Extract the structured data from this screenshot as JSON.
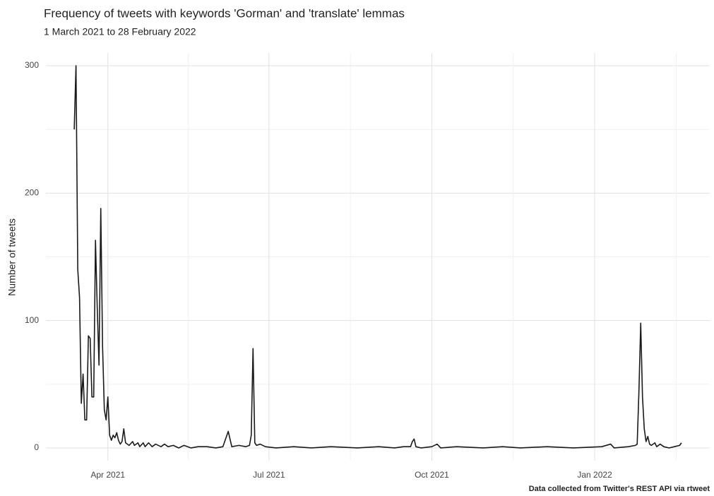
{
  "chart_data": {
    "type": "line",
    "title": "Frequency of tweets with keywords 'Gorman' and 'translate' lemmas",
    "subtitle": "1 March 2021 to 28 February 2022",
    "y_label": "Number of tweets",
    "caption": "Data collected from Twitter's REST API via rtweet",
    "x": [
      "2021-03-13",
      "2021-03-14",
      "2021-03-15",
      "2021-03-16",
      "2021-03-17",
      "2021-03-18",
      "2021-03-19",
      "2021-03-20",
      "2021-03-21",
      "2021-03-22",
      "2021-03-23",
      "2021-03-24",
      "2021-03-25",
      "2021-03-26",
      "2021-03-27",
      "2021-03-28",
      "2021-03-29",
      "2021-03-30",
      "2021-03-31",
      "2021-04-01",
      "2021-04-02",
      "2021-04-03",
      "2021-04-04",
      "2021-04-05",
      "2021-04-06",
      "2021-04-07",
      "2021-04-08",
      "2021-04-09",
      "2021-04-10",
      "2021-04-11",
      "2021-04-13",
      "2021-04-15",
      "2021-04-16",
      "2021-04-18",
      "2021-04-19",
      "2021-04-21",
      "2021-04-22",
      "2021-04-24",
      "2021-04-26",
      "2021-04-28",
      "2021-05-01",
      "2021-05-03",
      "2021-05-05",
      "2021-05-08",
      "2021-05-11",
      "2021-05-14",
      "2021-05-18",
      "2021-05-22",
      "2021-05-27",
      "2021-06-01",
      "2021-06-05",
      "2021-06-08",
      "2021-06-10",
      "2021-06-14",
      "2021-06-18",
      "2021-06-20",
      "2021-06-21",
      "2021-06-22",
      "2021-06-23",
      "2021-06-24",
      "2021-06-26",
      "2021-06-29",
      "2021-07-05",
      "2021-07-15",
      "2021-07-25",
      "2021-08-05",
      "2021-08-20",
      "2021-09-01",
      "2021-09-10",
      "2021-09-15",
      "2021-09-19",
      "2021-09-20",
      "2021-09-21",
      "2021-09-22",
      "2021-09-25",
      "2021-10-01",
      "2021-10-04",
      "2021-10-06",
      "2021-10-15",
      "2021-10-30",
      "2021-11-10",
      "2021-11-20",
      "2021-12-05",
      "2021-12-20",
      "2022-01-05",
      "2022-01-10",
      "2022-01-12",
      "2022-01-20",
      "2022-01-24",
      "2022-01-25",
      "2022-01-26",
      "2022-01-27",
      "2022-01-28",
      "2022-01-29",
      "2022-01-30",
      "2022-01-31",
      "2022-02-01",
      "2022-02-02",
      "2022-02-04",
      "2022-02-05",
      "2022-02-07",
      "2022-02-09",
      "2022-02-12",
      "2022-02-15",
      "2022-02-18",
      "2022-02-19"
    ],
    "values": [
      250,
      300,
      140,
      118,
      35,
      58,
      22,
      22,
      88,
      86,
      40,
      40,
      163,
      110,
      65,
      188,
      80,
      30,
      22,
      40,
      10,
      6,
      10,
      8,
      12,
      6,
      3,
      5,
      15,
      4,
      2,
      5,
      2,
      4,
      1,
      4,
      1,
      4,
      1,
      3,
      1,
      3,
      1,
      2,
      0,
      2,
      0,
      1,
      1,
      0,
      1,
      13,
      1,
      2,
      1,
      2,
      10,
      78,
      4,
      2,
      3,
      1,
      0,
      1,
      0,
      1,
      0,
      1,
      0,
      1,
      1,
      5,
      7,
      1,
      0,
      1,
      3,
      0,
      1,
      0,
      1,
      0,
      1,
      0,
      1,
      3,
      0,
      1,
      2,
      3,
      45,
      98,
      40,
      15,
      5,
      9,
      3,
      2,
      4,
      1,
      3,
      1,
      0,
      1,
      2,
      4
    ],
    "color": "#1a1a1a",
    "xlim": [
      "2021-02-25",
      "2022-03-07"
    ],
    "xticks": [
      {
        "value": "2021-04-01",
        "label": "Apr 2021"
      },
      {
        "value": "2021-07-01",
        "label": "Jul 2021"
      },
      {
        "value": "2021-10-01",
        "label": "Oct 2021"
      },
      {
        "value": "2022-01-01",
        "label": "Jan 2022"
      }
    ],
    "ylim": [
      -10,
      310
    ],
    "yticks": [
      0,
      100,
      200,
      300
    ],
    "grid": true,
    "minor_grid": true
  }
}
